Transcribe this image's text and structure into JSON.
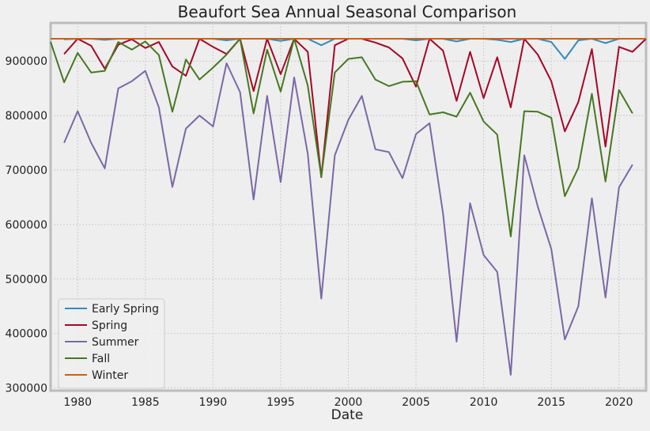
{
  "chart_data": {
    "type": "line",
    "title": "Beaufort Sea Annual Seasonal Comparison",
    "xlabel": "Date",
    "ylabel": "",
    "xlim": [
      1978,
      2022
    ],
    "ylim": [
      295000,
      970000
    ],
    "x_ticks": [
      1980,
      1985,
      1990,
      1995,
      2000,
      2005,
      2010,
      2015,
      2020
    ],
    "y_ticks": [
      300000,
      400000,
      500000,
      600000,
      700000,
      800000,
      900000
    ],
    "x_tick_labels": [
      "1980",
      "1985",
      "1990",
      "1995",
      "2000",
      "2005",
      "2010",
      "2015",
      "2020"
    ],
    "y_tick_labels": [
      "300000",
      "400000",
      "500000",
      "600000",
      "700000",
      "800000",
      "900000"
    ],
    "grid": true,
    "legend_position": "lower-left",
    "series": [
      {
        "name": "Early Spring",
        "color": "#348abd",
        "points": [
          [
            1979,
            940000
          ],
          [
            1980,
            941000
          ],
          [
            1981,
            941000
          ],
          [
            1982,
            939000
          ],
          [
            1983,
            941000
          ],
          [
            1984,
            941000
          ],
          [
            1985,
            941000
          ],
          [
            1986,
            941000
          ],
          [
            1987,
            941000
          ],
          [
            1988,
            941000
          ],
          [
            1989,
            941000
          ],
          [
            1990,
            941000
          ],
          [
            1991,
            938000
          ],
          [
            1992,
            941000
          ],
          [
            1993,
            941000
          ],
          [
            1994,
            941000
          ],
          [
            1995,
            937000
          ],
          [
            1996,
            941000
          ],
          [
            1997,
            941000
          ],
          [
            1998,
            929000
          ],
          [
            1999,
            941000
          ],
          [
            2000,
            941000
          ],
          [
            2001,
            941000
          ],
          [
            2002,
            941000
          ],
          [
            2003,
            941000
          ],
          [
            2004,
            941000
          ],
          [
            2005,
            938000
          ],
          [
            2006,
            941000
          ],
          [
            2007,
            941000
          ],
          [
            2008,
            936000
          ],
          [
            2009,
            941000
          ],
          [
            2010,
            941000
          ],
          [
            2011,
            939000
          ],
          [
            2012,
            935000
          ],
          [
            2013,
            941000
          ],
          [
            2014,
            941000
          ],
          [
            2015,
            935000
          ],
          [
            2016,
            904000
          ],
          [
            2017,
            938000
          ],
          [
            2018,
            941000
          ],
          [
            2019,
            933000
          ],
          [
            2020,
            941000
          ],
          [
            2021,
            941000
          ],
          [
            2022,
            941000
          ]
        ]
      },
      {
        "name": "Spring",
        "color": "#a60628",
        "points": [
          [
            1979,
            913000
          ],
          [
            1980,
            941000
          ],
          [
            1981,
            928000
          ],
          [
            1982,
            886000
          ],
          [
            1983,
            930000
          ],
          [
            1984,
            940000
          ],
          [
            1985,
            924000
          ],
          [
            1986,
            935000
          ],
          [
            1987,
            890000
          ],
          [
            1988,
            873000
          ],
          [
            1989,
            941000
          ],
          [
            1990,
            926000
          ],
          [
            1991,
            913000
          ],
          [
            1992,
            941000
          ],
          [
            1993,
            845000
          ],
          [
            1994,
            941000
          ],
          [
            1995,
            876000
          ],
          [
            1996,
            941000
          ],
          [
            1997,
            917000
          ],
          [
            1998,
            687000
          ],
          [
            1999,
            929000
          ],
          [
            2000,
            941000
          ],
          [
            2001,
            941000
          ],
          [
            2002,
            934000
          ],
          [
            2003,
            925000
          ],
          [
            2004,
            905000
          ],
          [
            2005,
            853000
          ],
          [
            2006,
            941000
          ],
          [
            2007,
            919000
          ],
          [
            2008,
            827000
          ],
          [
            2009,
            917000
          ],
          [
            2010,
            832000
          ],
          [
            2011,
            907000
          ],
          [
            2012,
            815000
          ],
          [
            2013,
            941000
          ],
          [
            2014,
            912000
          ],
          [
            2015,
            863000
          ],
          [
            2016,
            771000
          ],
          [
            2017,
            825000
          ],
          [
            2018,
            922000
          ],
          [
            2019,
            743000
          ],
          [
            2020,
            926000
          ],
          [
            2021,
            917000
          ],
          [
            2022,
            941000
          ]
        ]
      },
      {
        "name": "Summer",
        "color": "#7a68a6",
        "points": [
          [
            1979,
            750000
          ],
          [
            1980,
            808000
          ],
          [
            1981,
            750000
          ],
          [
            1982,
            703000
          ],
          [
            1983,
            850000
          ],
          [
            1984,
            863000
          ],
          [
            1985,
            882000
          ],
          [
            1986,
            815000
          ],
          [
            1987,
            669000
          ],
          [
            1988,
            776000
          ],
          [
            1989,
            800000
          ],
          [
            1990,
            780000
          ],
          [
            1991,
            896000
          ],
          [
            1992,
            843000
          ],
          [
            1993,
            646000
          ],
          [
            1994,
            836000
          ],
          [
            1995,
            678000
          ],
          [
            1996,
            870000
          ],
          [
            1997,
            730000
          ],
          [
            1998,
            464000
          ],
          [
            1999,
            727000
          ],
          [
            2000,
            792000
          ],
          [
            2001,
            836000
          ],
          [
            2002,
            738000
          ],
          [
            2003,
            733000
          ],
          [
            2004,
            685000
          ],
          [
            2005,
            766000
          ],
          [
            2006,
            786000
          ],
          [
            2007,
            620000
          ],
          [
            2008,
            385000
          ],
          [
            2009,
            639000
          ],
          [
            2010,
            544000
          ],
          [
            2011,
            513000
          ],
          [
            2012,
            324000
          ],
          [
            2013,
            727000
          ],
          [
            2014,
            633000
          ],
          [
            2015,
            555000
          ],
          [
            2016,
            389000
          ],
          [
            2017,
            450000
          ],
          [
            2018,
            648000
          ],
          [
            2019,
            466000
          ],
          [
            2020,
            668000
          ],
          [
            2021,
            710000
          ]
        ]
      },
      {
        "name": "Fall",
        "color": "#467821",
        "points": [
          [
            1978,
            935000
          ],
          [
            1979,
            861000
          ],
          [
            1980,
            915000
          ],
          [
            1981,
            879000
          ],
          [
            1982,
            882000
          ],
          [
            1983,
            935000
          ],
          [
            1984,
            921000
          ],
          [
            1985,
            936000
          ],
          [
            1986,
            911000
          ],
          [
            1987,
            807000
          ],
          [
            1988,
            903000
          ],
          [
            1989,
            866000
          ],
          [
            1990,
            888000
          ],
          [
            1991,
            912000
          ],
          [
            1992,
            941000
          ],
          [
            1993,
            804000
          ],
          [
            1994,
            921000
          ],
          [
            1995,
            844000
          ],
          [
            1996,
            941000
          ],
          [
            1997,
            855000
          ],
          [
            1998,
            688000
          ],
          [
            1999,
            879000
          ],
          [
            2000,
            904000
          ],
          [
            2001,
            907000
          ],
          [
            2002,
            866000
          ],
          [
            2003,
            854000
          ],
          [
            2004,
            862000
          ],
          [
            2005,
            863000
          ],
          [
            2006,
            802000
          ],
          [
            2007,
            806000
          ],
          [
            2008,
            798000
          ],
          [
            2009,
            842000
          ],
          [
            2010,
            789000
          ],
          [
            2011,
            765000
          ],
          [
            2012,
            578000
          ],
          [
            2013,
            808000
          ],
          [
            2014,
            807000
          ],
          [
            2015,
            796000
          ],
          [
            2016,
            652000
          ],
          [
            2017,
            704000
          ],
          [
            2018,
            840000
          ],
          [
            2019,
            679000
          ],
          [
            2020,
            847000
          ],
          [
            2021,
            804000
          ]
        ]
      },
      {
        "name": "Winter",
        "color": "#d55e00",
        "points": [
          [
            1978,
            941000
          ],
          [
            2022,
            941000
          ]
        ]
      }
    ]
  }
}
